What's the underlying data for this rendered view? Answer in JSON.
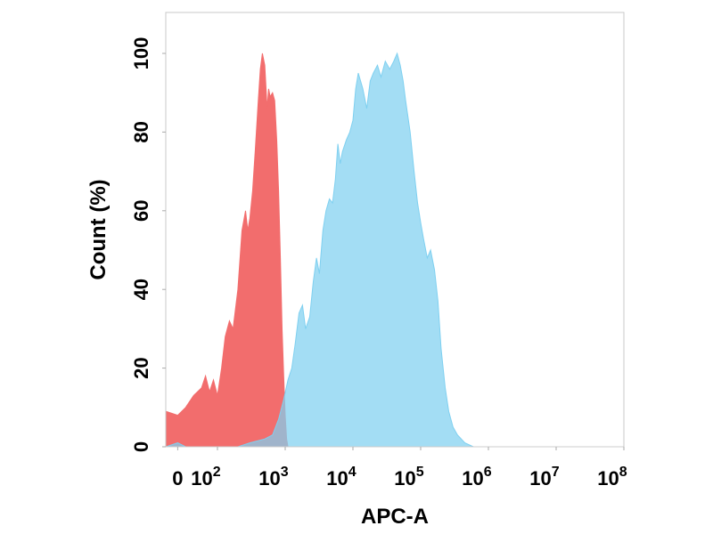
{
  "chart_data": {
    "type": "area",
    "title": "",
    "xlabel": "APC-A",
    "ylabel": "Count  (%)",
    "x_scale": "log",
    "xlim": [
      -30,
      100000000
    ],
    "ylim": [
      0,
      105
    ],
    "x_ticks": [
      {
        "value": 0,
        "base": "0",
        "exp": ""
      },
      {
        "value": 100,
        "base": "10",
        "exp": "2"
      },
      {
        "value": 1000,
        "base": "10",
        "exp": "3"
      },
      {
        "value": 10000,
        "base": "10",
        "exp": "4"
      },
      {
        "value": 100000,
        "base": "10",
        "exp": "5"
      },
      {
        "value": 1000000,
        "base": "10",
        "exp": "6"
      },
      {
        "value": 10000000,
        "base": "10",
        "exp": "7"
      },
      {
        "value": 100000000,
        "base": "10",
        "exp": "8"
      }
    ],
    "y_ticks": [
      0,
      20,
      40,
      60,
      80,
      100
    ],
    "grid": false,
    "legend": "none",
    "series": [
      {
        "color": "#f26d6d",
        "points": [
          [
            -30,
            9
          ],
          [
            0,
            8
          ],
          [
            20,
            10
          ],
          [
            40,
            13
          ],
          [
            60,
            15
          ],
          [
            70,
            18
          ],
          [
            80,
            14
          ],
          [
            90,
            17
          ],
          [
            100,
            13
          ],
          [
            115,
            20
          ],
          [
            130,
            28
          ],
          [
            150,
            32
          ],
          [
            170,
            30
          ],
          [
            200,
            40
          ],
          [
            230,
            55
          ],
          [
            260,
            60
          ],
          [
            280,
            55
          ],
          [
            300,
            58
          ],
          [
            330,
            65
          ],
          [
            360,
            75
          ],
          [
            400,
            88
          ],
          [
            430,
            96
          ],
          [
            460,
            100
          ],
          [
            500,
            97
          ],
          [
            540,
            86
          ],
          [
            570,
            91
          ],
          [
            600,
            89
          ],
          [
            650,
            90
          ],
          [
            700,
            88
          ],
          [
            750,
            78
          ],
          [
            800,
            65
          ],
          [
            850,
            48
          ],
          [
            900,
            30
          ],
          [
            950,
            18
          ],
          [
            1000,
            8
          ],
          [
            1050,
            2
          ],
          [
            1100,
            0
          ]
        ]
      },
      {
        "color": "#7fd0f0",
        "points": [
          [
            -30,
            0
          ],
          [
            0,
            1
          ],
          [
            20,
            0
          ],
          [
            60,
            0
          ],
          [
            200,
            0
          ],
          [
            300,
            1
          ],
          [
            500,
            2
          ],
          [
            650,
            3
          ],
          [
            800,
            7
          ],
          [
            950,
            12
          ],
          [
            1100,
            17
          ],
          [
            1250,
            20
          ],
          [
            1400,
            26
          ],
          [
            1600,
            34
          ],
          [
            1800,
            36
          ],
          [
            2000,
            30
          ],
          [
            2300,
            33
          ],
          [
            2600,
            42
          ],
          [
            2900,
            48
          ],
          [
            3200,
            44
          ],
          [
            3600,
            55
          ],
          [
            4000,
            60
          ],
          [
            4500,
            63
          ],
          [
            5000,
            62
          ],
          [
            5500,
            68
          ],
          [
            6000,
            77
          ],
          [
            6500,
            72
          ],
          [
            7000,
            75
          ],
          [
            8000,
            78
          ],
          [
            9000,
            80
          ],
          [
            10000,
            83
          ],
          [
            11000,
            91
          ],
          [
            12000,
            95
          ],
          [
            14000,
            91
          ],
          [
            16000,
            86
          ],
          [
            18000,
            93
          ],
          [
            20000,
            95
          ],
          [
            23000,
            97
          ],
          [
            26000,
            94
          ],
          [
            30000,
            98
          ],
          [
            35000,
            96
          ],
          [
            40000,
            98
          ],
          [
            45000,
            100
          ],
          [
            50000,
            97
          ],
          [
            55000,
            93
          ],
          [
            60000,
            88
          ],
          [
            70000,
            80
          ],
          [
            80000,
            70
          ],
          [
            90000,
            62
          ],
          [
            100000,
            57
          ],
          [
            110000,
            53
          ],
          [
            125000,
            48
          ],
          [
            140000,
            50
          ],
          [
            160000,
            45
          ],
          [
            180000,
            37
          ],
          [
            200000,
            25
          ],
          [
            230000,
            15
          ],
          [
            260000,
            9
          ],
          [
            300000,
            5
          ],
          [
            350000,
            3
          ],
          [
            450000,
            1
          ],
          [
            600000,
            0
          ],
          [
            100000000,
            0
          ]
        ]
      }
    ]
  }
}
